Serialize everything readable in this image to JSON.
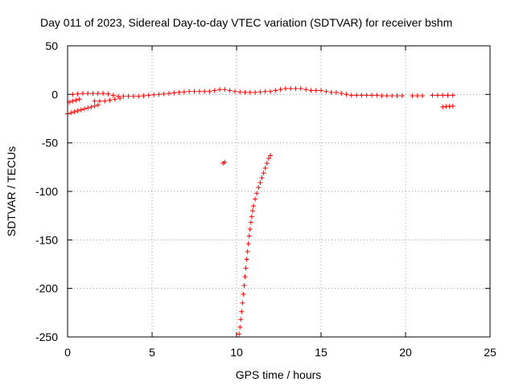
{
  "chart_data": {
    "type": "scatter",
    "title": "Day 011 of 2023, Sidereal Day-to-day VTEC variation (SDTVAR) for receiver bshm",
    "xlabel": "GPS time / hours",
    "ylabel": "SDTVAR / TECUs",
    "xlim": [
      0,
      25
    ],
    "ylim": [
      -250,
      50
    ],
    "xticks": [
      0,
      5,
      10,
      15,
      20,
      25
    ],
    "yticks": [
      50,
      0,
      -50,
      -100,
      -150,
      -200,
      -250
    ],
    "grid": true,
    "marker": "plus",
    "color": "#ff0000",
    "series": [
      {
        "name": "main band",
        "points": [
          [
            0.3,
            0
          ],
          [
            0.6,
            0.5
          ],
          [
            0.9,
            1
          ],
          [
            1.2,
            1
          ],
          [
            1.5,
            1
          ],
          [
            1.8,
            1
          ],
          [
            2.1,
            1
          ],
          [
            2.4,
            0.5
          ],
          [
            2.7,
            -1
          ],
          [
            3.0,
            -2
          ],
          [
            3.3,
            -2
          ],
          [
            3.6,
            -2
          ],
          [
            3.9,
            -2
          ],
          [
            4.2,
            -2
          ],
          [
            4.5,
            -1.5
          ],
          [
            4.8,
            -1
          ],
          [
            5.1,
            -0.5
          ],
          [
            5.4,
            0
          ],
          [
            5.7,
            0.5
          ],
          [
            6.0,
            1
          ],
          [
            6.3,
            1.5
          ],
          [
            6.6,
            2
          ],
          [
            6.9,
            2.5
          ],
          [
            7.2,
            3
          ],
          [
            7.5,
            3
          ],
          [
            7.8,
            3
          ],
          [
            8.1,
            3
          ],
          [
            8.4,
            3
          ],
          [
            8.7,
            4
          ],
          [
            9.0,
            5
          ],
          [
            9.3,
            5
          ],
          [
            9.6,
            4
          ],
          [
            9.9,
            3
          ],
          [
            10.2,
            2.5
          ],
          [
            10.5,
            2
          ],
          [
            10.8,
            2
          ],
          [
            11.1,
            2
          ],
          [
            11.4,
            2.5
          ],
          [
            11.7,
            3
          ],
          [
            12.0,
            3
          ],
          [
            12.3,
            4
          ],
          [
            12.6,
            5
          ],
          [
            12.9,
            6
          ],
          [
            13.2,
            6
          ],
          [
            13.5,
            6
          ],
          [
            13.8,
            6
          ],
          [
            14.1,
            5
          ],
          [
            14.4,
            4
          ],
          [
            14.7,
            4
          ],
          [
            15.0,
            4
          ],
          [
            15.3,
            3
          ],
          [
            15.6,
            2
          ],
          [
            15.9,
            2
          ],
          [
            16.2,
            1
          ],
          [
            16.5,
            0
          ],
          [
            16.8,
            -1
          ],
          [
            17.1,
            -1
          ],
          [
            17.4,
            -1
          ],
          [
            17.7,
            -1
          ],
          [
            18.0,
            -1
          ],
          [
            18.3,
            -1
          ],
          [
            18.6,
            -1.5
          ],
          [
            18.9,
            -1.5
          ],
          [
            19.2,
            -1.5
          ],
          [
            19.5,
            -1.5
          ],
          [
            19.8,
            -1.5
          ],
          [
            20.4,
            -1.5
          ],
          [
            20.7,
            -1.5
          ],
          [
            21.0,
            -1.5
          ],
          [
            21.6,
            -1
          ],
          [
            21.9,
            -1
          ],
          [
            22.2,
            -1
          ],
          [
            22.5,
            -1
          ],
          [
            22.8,
            -1
          ]
        ]
      },
      {
        "name": "morning ramp",
        "points": [
          [
            0.0,
            -20
          ],
          [
            0.2,
            -19
          ],
          [
            0.4,
            -18
          ],
          [
            0.6,
            -17
          ],
          [
            0.8,
            -16
          ],
          [
            1.0,
            -15
          ],
          [
            1.2,
            -14
          ],
          [
            1.4,
            -13
          ],
          [
            1.6,
            -12
          ],
          [
            1.8,
            -11
          ],
          [
            0.1,
            -8
          ],
          [
            0.3,
            -7
          ],
          [
            0.5,
            -6
          ],
          [
            0.7,
            -5
          ]
        ]
      },
      {
        "name": "low segment",
        "points": [
          [
            1.6,
            -7
          ],
          [
            1.9,
            -7
          ],
          [
            2.2,
            -7
          ],
          [
            2.5,
            -6
          ],
          [
            2.8,
            -5
          ],
          [
            3.1,
            -4
          ]
        ]
      },
      {
        "name": "late offset",
        "points": [
          [
            22.2,
            -13
          ],
          [
            22.4,
            -12.5
          ],
          [
            22.6,
            -12.5
          ],
          [
            22.8,
            -12
          ]
        ]
      },
      {
        "name": "outlier",
        "points": [
          [
            9.2,
            -71
          ],
          [
            9.3,
            -70
          ]
        ]
      },
      {
        "name": "recovery arc",
        "points": [
          [
            10.15,
            -247
          ],
          [
            10.2,
            -240
          ],
          [
            10.25,
            -232
          ],
          [
            10.3,
            -224
          ],
          [
            10.35,
            -215
          ],
          [
            10.4,
            -206
          ],
          [
            10.45,
            -197
          ],
          [
            10.5,
            -188
          ],
          [
            10.55,
            -179
          ],
          [
            10.6,
            -170
          ],
          [
            10.65,
            -162
          ],
          [
            10.7,
            -154
          ],
          [
            10.75,
            -146
          ],
          [
            10.8,
            -139
          ],
          [
            10.85,
            -132
          ],
          [
            10.9,
            -126
          ],
          [
            10.95,
            -120
          ],
          [
            11.0,
            -115
          ],
          [
            11.1,
            -108
          ],
          [
            11.2,
            -102
          ],
          [
            11.3,
            -96
          ],
          [
            11.4,
            -91
          ],
          [
            11.5,
            -86
          ],
          [
            11.6,
            -81
          ],
          [
            11.7,
            -76
          ],
          [
            11.8,
            -71
          ],
          [
            11.9,
            -66
          ],
          [
            12.0,
            -63
          ]
        ]
      }
    ]
  }
}
